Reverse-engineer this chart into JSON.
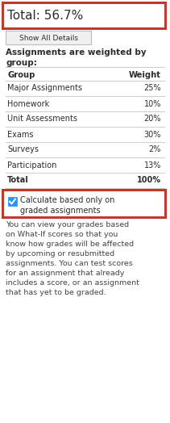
{
  "total_text": "Total: 56.7%",
  "button_text": "Show All Details",
  "header_text": "Assignments are weighted by\ngroup:",
  "col_group": "Group",
  "col_weight": "Weight",
  "rows": [
    [
      "Major Assignments",
      "25%"
    ],
    [
      "Homework",
      "10%"
    ],
    [
      "Unit Assessments",
      "20%"
    ],
    [
      "Exams",
      "30%"
    ],
    [
      "Surveys",
      "2%"
    ],
    [
      "Participation",
      "13%"
    ],
    [
      "Total",
      "100%"
    ]
  ],
  "checkbox_text": "Calculate based only on\ngraded assignments",
  "footer_text": "You can view your grades based\non What-If scores so that you\nknow how grades will be affected\nby upcoming or resubmitted\nassignments. You can test scores\nfor an assignment that already\nincludes a score, or an assignment\nthat has yet to be graded.",
  "bg_color": "#ffffff",
  "border_red": "#c0392b",
  "text_dark": "#2d2d2d",
  "text_gray": "#444444",
  "button_bg": "#f0f0f0",
  "button_border": "#bbbbbb",
  "line_color": "#cccccc",
  "checkbox_blue": "#2196F3",
  "fig_width": 2.11,
  "fig_height": 5.24,
  "dpi": 100
}
